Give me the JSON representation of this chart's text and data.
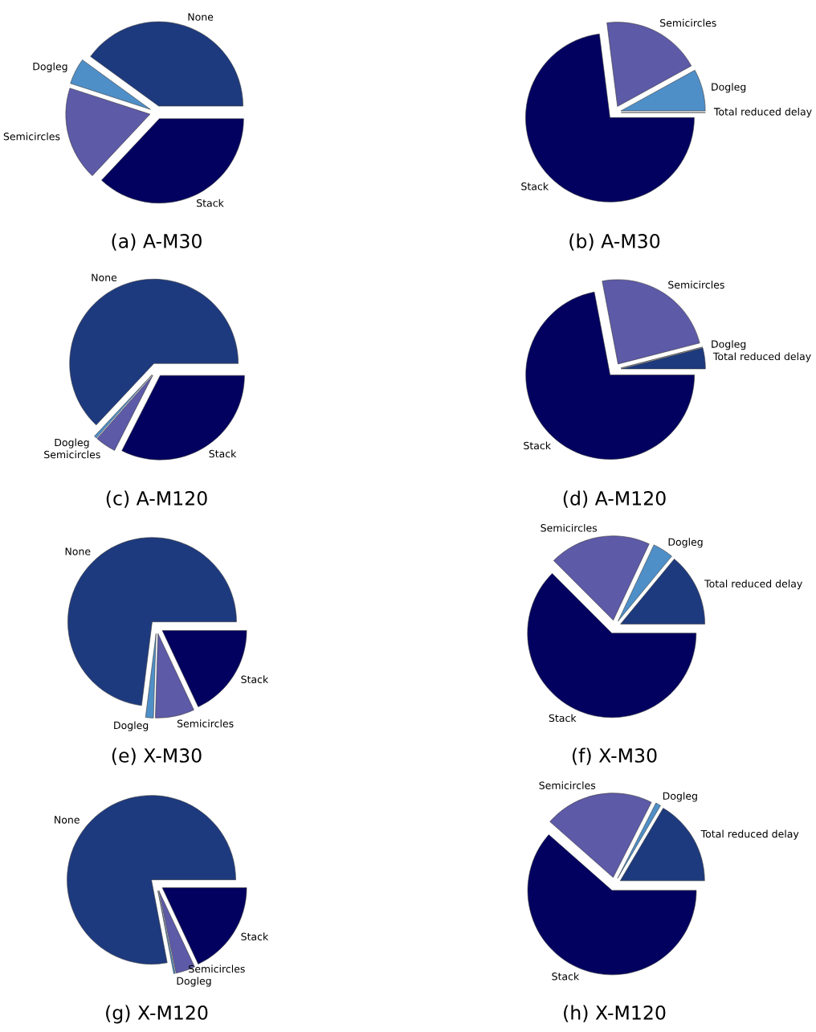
{
  "chart_data": [
    {
      "type": "pie",
      "title": "(a) A-M30",
      "categories": [
        "None",
        "Dogleg",
        "Semicircles",
        "Stack"
      ],
      "values": [
        40,
        5,
        18,
        37
      ],
      "colors": [
        "#1e3a7e",
        "#4f8fc8",
        "#5d5aa8",
        "#02015f"
      ]
    },
    {
      "type": "pie",
      "title": "(b) A-M30",
      "categories": [
        "Total reduced delay",
        "Dogleg",
        "Semicircles",
        "Stack"
      ],
      "values": [
        0,
        8,
        19,
        73
      ],
      "colors": [
        "#1e3a7e",
        "#4f8fc8",
        "#5d5aa8",
        "#02015f"
      ]
    },
    {
      "type": "pie",
      "title": "(c) A-M120",
      "categories": [
        "None",
        "Dogleg",
        "Semicircles",
        "Stack"
      ],
      "values": [
        63,
        0.5,
        4,
        32.5
      ],
      "colors": [
        "#1e3a7e",
        "#4f8fc8",
        "#5d5aa8",
        "#02015f"
      ]
    },
    {
      "type": "pie",
      "title": "(d) A-M120",
      "categories": [
        "Total reduced delay",
        "Dogleg",
        "Semicircles",
        "Stack"
      ],
      "values": [
        4,
        0,
        24,
        72
      ],
      "colors": [
        "#1e3a7e",
        "#4f8fc8",
        "#5d5aa8",
        "#02015f"
      ]
    },
    {
      "type": "pie",
      "title": "(e) X-M30",
      "categories": [
        "None",
        "Dogleg",
        "Semicircles",
        "Stack"
      ],
      "values": [
        73,
        1.5,
        7.5,
        18
      ],
      "colors": [
        "#1e3a7e",
        "#4f8fc8",
        "#5d5aa8",
        "#02015f"
      ]
    },
    {
      "type": "pie",
      "title": "(f) X-M30",
      "categories": [
        "Total reduced delay",
        "Dogleg",
        "Semicircles",
        "Stack"
      ],
      "values": [
        14,
        4,
        19.5,
        62.5
      ],
      "colors": [
        "#1e3a7e",
        "#4f8fc8",
        "#5d5aa8",
        "#02015f"
      ]
    },
    {
      "type": "pie",
      "title": "(g) X-M120",
      "categories": [
        "None",
        "Dogleg",
        "Semicircles",
        "Stack"
      ],
      "values": [
        78,
        0.3,
        3.7,
        18
      ],
      "colors": [
        "#1e3a7e",
        "#4f8fc8",
        "#5d5aa8",
        "#02015f"
      ]
    },
    {
      "type": "pie",
      "title": "(h) X-M120",
      "categories": [
        "Total reduced delay",
        "Dogleg",
        "Semicircles",
        "Stack"
      ],
      "values": [
        16.5,
        1,
        21,
        61.5
      ],
      "colors": [
        "#1e3a7e",
        "#4f8fc8",
        "#5d5aa8",
        "#02015f"
      ]
    }
  ]
}
